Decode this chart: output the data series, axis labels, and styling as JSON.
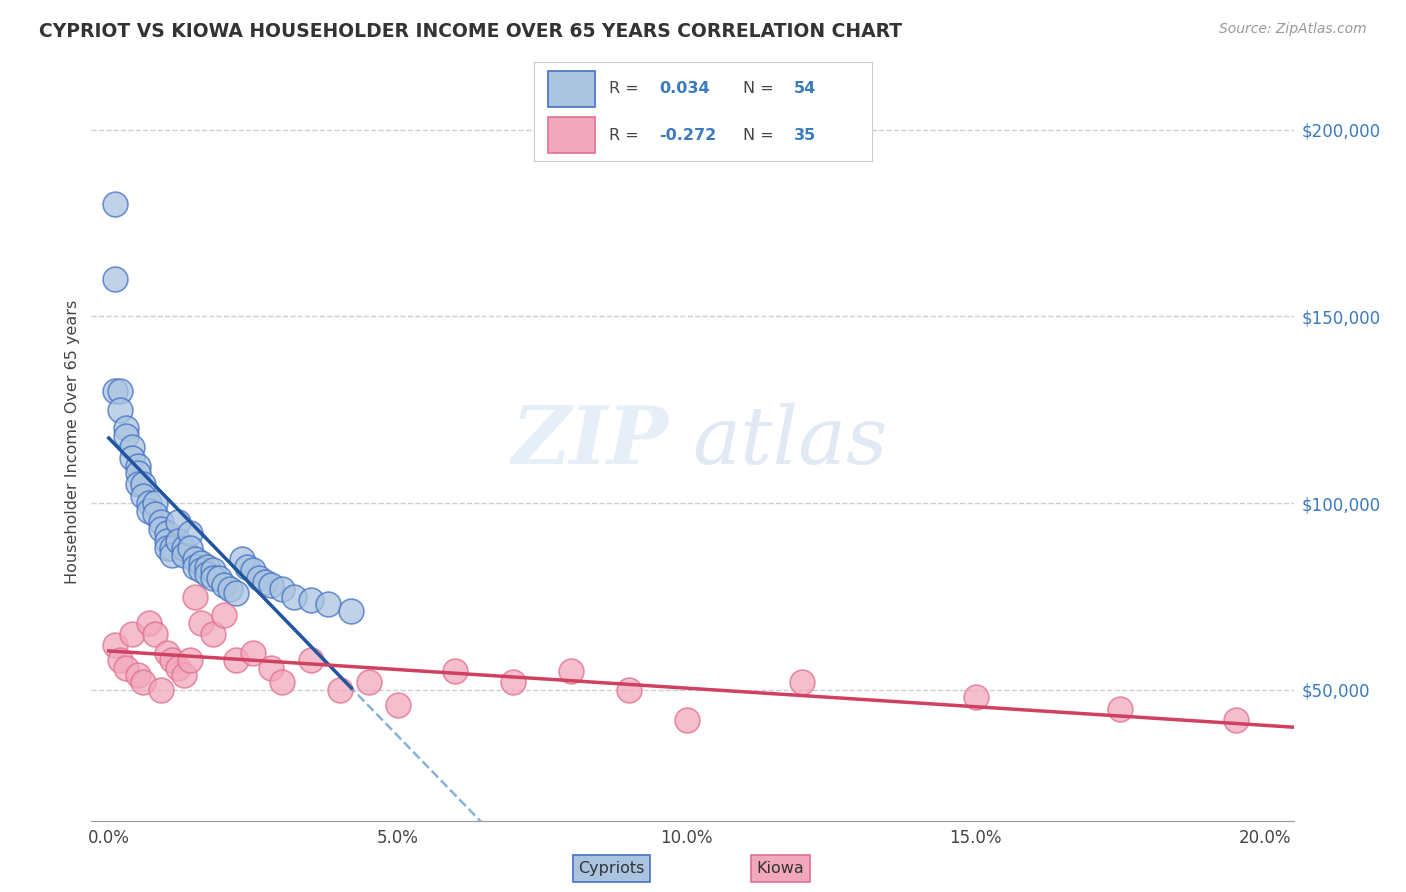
{
  "title": "CYPRIOT VS KIOWA HOUSEHOLDER INCOME OVER 65 YEARS CORRELATION CHART",
  "source": "Source: ZipAtlas.com",
  "ylabel": "Householder Income Over 65 years",
  "xlabel_ticks": [
    "0.0%",
    "5.0%",
    "10.0%",
    "15.0%",
    "20.0%"
  ],
  "xlabel_vals": [
    0.0,
    0.05,
    0.1,
    0.15,
    0.2
  ],
  "ylabel_ticks": [
    "$50,000",
    "$100,000",
    "$150,000",
    "$200,000"
  ],
  "ylabel_vals": [
    50000,
    100000,
    150000,
    200000
  ],
  "xlim": [
    -0.003,
    0.205
  ],
  "ylim": [
    15000,
    218000
  ],
  "cypriot_color": "#aac4e0",
  "kiowa_color": "#f2a8bc",
  "cypriot_edge_color": "#4472c4",
  "kiowa_edge_color": "#e07090",
  "cypriot_line_color": "#2255a0",
  "kiowa_line_color": "#d04060",
  "dashed_line_color": "#7aaad8",
  "background_color": "#ffffff",
  "watermark_text": "ZIP",
  "watermark_text2": "atlas",
  "cypriot_x": [
    0.001,
    0.001,
    0.001,
    0.002,
    0.002,
    0.003,
    0.003,
    0.004,
    0.004,
    0.005,
    0.005,
    0.005,
    0.006,
    0.006,
    0.007,
    0.007,
    0.008,
    0.008,
    0.009,
    0.009,
    0.01,
    0.01,
    0.01,
    0.011,
    0.011,
    0.012,
    0.012,
    0.013,
    0.013,
    0.014,
    0.014,
    0.015,
    0.015,
    0.016,
    0.016,
    0.017,
    0.017,
    0.018,
    0.018,
    0.019,
    0.02,
    0.021,
    0.022,
    0.023,
    0.024,
    0.025,
    0.026,
    0.027,
    0.028,
    0.03,
    0.032,
    0.035,
    0.038,
    0.042
  ],
  "cypriot_y": [
    180000,
    160000,
    130000,
    130000,
    125000,
    120000,
    118000,
    115000,
    112000,
    110000,
    108000,
    105000,
    105000,
    102000,
    100000,
    98000,
    100000,
    97000,
    95000,
    93000,
    92000,
    90000,
    88000,
    88000,
    86000,
    95000,
    90000,
    88000,
    86000,
    92000,
    88000,
    85000,
    83000,
    84000,
    82000,
    83000,
    81000,
    82000,
    80000,
    80000,
    78000,
    77000,
    76000,
    85000,
    83000,
    82000,
    80000,
    79000,
    78000,
    77000,
    75000,
    74000,
    73000,
    71000
  ],
  "kiowa_x": [
    0.001,
    0.002,
    0.003,
    0.004,
    0.005,
    0.006,
    0.007,
    0.008,
    0.009,
    0.01,
    0.011,
    0.012,
    0.013,
    0.014,
    0.015,
    0.016,
    0.018,
    0.02,
    0.022,
    0.025,
    0.028,
    0.03,
    0.035,
    0.04,
    0.045,
    0.05,
    0.06,
    0.07,
    0.08,
    0.09,
    0.1,
    0.12,
    0.15,
    0.175,
    0.195
  ],
  "kiowa_y": [
    62000,
    58000,
    56000,
    65000,
    54000,
    52000,
    68000,
    65000,
    50000,
    60000,
    58000,
    56000,
    54000,
    58000,
    75000,
    68000,
    65000,
    70000,
    58000,
    60000,
    56000,
    52000,
    58000,
    50000,
    52000,
    46000,
    55000,
    52000,
    55000,
    50000,
    42000,
    52000,
    48000,
    45000,
    42000
  ]
}
